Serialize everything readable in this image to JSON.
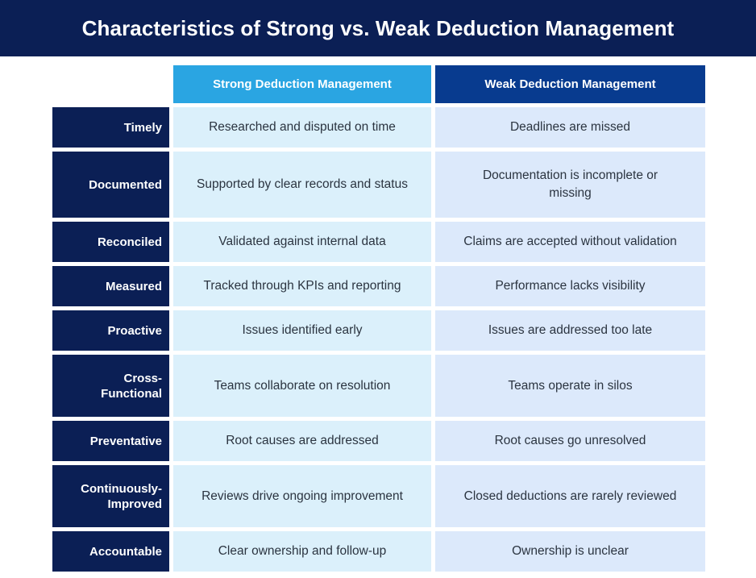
{
  "title": "Characteristics of Strong vs. Weak Deduction Management",
  "columns": {
    "strong": "Strong Deduction Management",
    "weak": "Weak Deduction Management"
  },
  "rows": [
    {
      "label": "Timely",
      "strong": "Researched and disputed on time",
      "weak": "Deadlines are missed"
    },
    {
      "label": "Documented",
      "strong": "Supported by clear records and status",
      "weak": "Documentation is incomplete or missing"
    },
    {
      "label": "Reconciled",
      "strong": "Validated against internal data",
      "weak": "Claims are accepted without validation"
    },
    {
      "label": "Measured",
      "strong": "Tracked through KPIs and reporting",
      "weak": "Performance lacks visibility"
    },
    {
      "label": "Proactive",
      "strong": "Issues identified early",
      "weak": "Issues are addressed too late"
    },
    {
      "label": "Cross-\nFunctional",
      "strong": "Teams collaborate on resolution",
      "weak": "Teams operate in silos"
    },
    {
      "label": "Preventative",
      "strong": "Root causes are addressed",
      "weak": "Root causes go unresolved"
    },
    {
      "label": "Continuously-\nImproved",
      "strong": "Reviews drive ongoing improvement",
      "weak": "Closed deductions are rarely reviewed"
    },
    {
      "label": "Accountable",
      "strong": "Clear ownership and follow-up",
      "weak": "Ownership is unclear"
    }
  ]
}
